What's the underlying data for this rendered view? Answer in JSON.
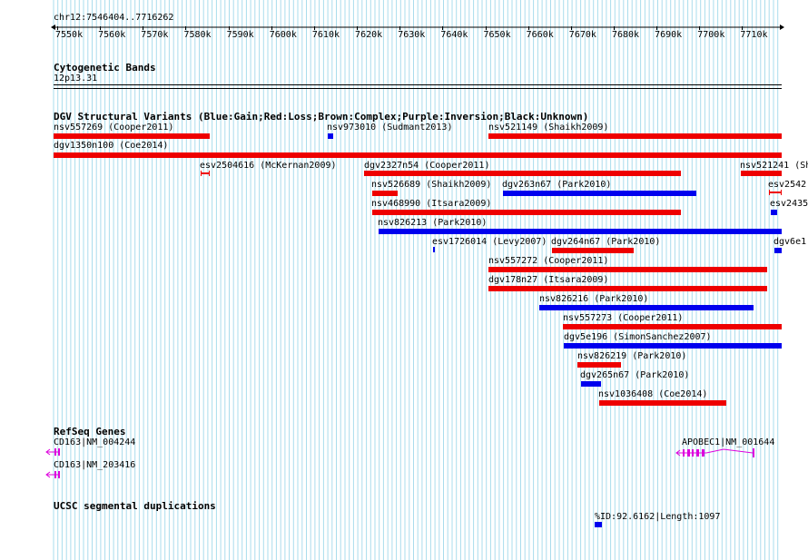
{
  "coordinates": "chr12:7546404..7716262",
  "ruler_ticks": [
    "7550k",
    "7560k",
    "7570k",
    "7580k",
    "7590k",
    "7600k",
    "7610k",
    "7620k",
    "7630k",
    "7640k",
    "7650k",
    "7660k",
    "7670k",
    "7680k",
    "7690k",
    "7700k",
    "7710k"
  ],
  "cyto": {
    "title": "Cytogenetic Bands",
    "band": "12p13.31"
  },
  "dgv": {
    "title": "DGV Structural Variants (Blue:Gain;Red:Loss;Brown:Complex;Purple:Inversion;Black:Unknown)",
    "features": [
      {
        "label": "nsv557269 (Cooper2011)",
        "color": "red"
      },
      {
        "label": "nsv973010 (Sudmant2013)",
        "color": "blue"
      },
      {
        "label": "nsv521149 (Shaikh2009)",
        "color": "red"
      },
      {
        "label": "dgv1350n100 (Coe2014)",
        "color": "red"
      },
      {
        "label": "esv2504616 (McKernan2009)",
        "color": "red"
      },
      {
        "label": "dgv2327n54 (Cooper2011)",
        "color": "red"
      },
      {
        "label": "nsv521241 (Sh",
        "color": "red"
      },
      {
        "label": "nsv526689 (Shaikh2009)",
        "color": "red"
      },
      {
        "label": "dgv263n67 (Park2010)",
        "color": "blue"
      },
      {
        "label": "esv2542",
        "color": "red"
      },
      {
        "label": "nsv468990 (Itsara2009)",
        "color": "red"
      },
      {
        "label": "esv2435",
        "color": "blue"
      },
      {
        "label": "nsv826213 (Park2010)",
        "color": "blue"
      },
      {
        "label": "esv1726014 (Levy2007)",
        "color": "blue"
      },
      {
        "label": "dgv264n67 (Park2010)",
        "color": "red"
      },
      {
        "label": "dgv6e1",
        "color": "blue"
      },
      {
        "label": "nsv557272 (Cooper2011)",
        "color": "red"
      },
      {
        "label": "dgv178n27 (Itsara2009)",
        "color": "red"
      },
      {
        "label": "nsv826216 (Park2010)",
        "color": "blue"
      },
      {
        "label": "nsv557273 (Cooper2011)",
        "color": "red"
      },
      {
        "label": "dgv5e196 (SimonSanchez2007)",
        "color": "blue"
      },
      {
        "label": "nsv826219 (Park2010)",
        "color": "red"
      },
      {
        "label": "dgv265n67 (Park2010)",
        "color": "blue"
      },
      {
        "label": "nsv1036408 (Coe2014)",
        "color": "red"
      }
    ]
  },
  "refseq": {
    "title": "RefSeq Genes",
    "genes": [
      "CD163|NM_004244",
      "CD163|NM_203416",
      "APOBEC1|NM_001644"
    ]
  },
  "segdup": {
    "title": "UCSC segmental duplications",
    "features": [
      "%ID:92.6162|Length:1097"
    ]
  },
  "colors": {
    "gain": "#0000ee",
    "loss": "#ee0000",
    "gene": "#dd00dd",
    "grid": "#aadcec"
  }
}
